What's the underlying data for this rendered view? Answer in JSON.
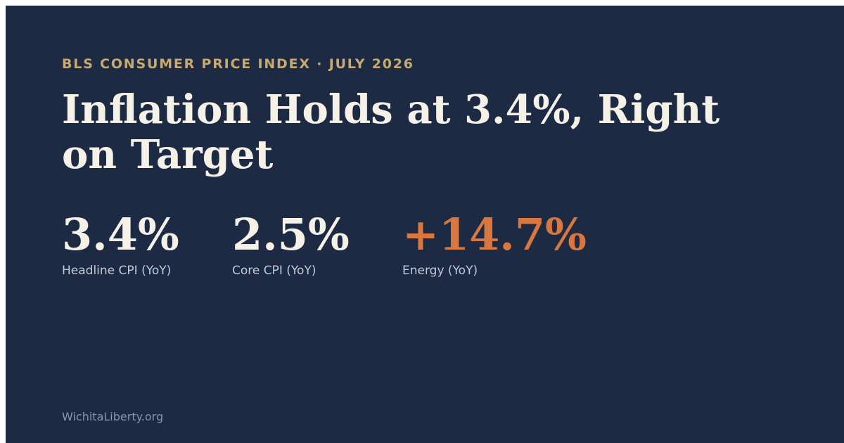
{
  "colors": {
    "background": "#1c2a44",
    "kicker": "#c9a96e",
    "headline": "#f6f1e7",
    "label": "#c3c9d6",
    "accent": "#d9773f",
    "footer": "#8b93a5"
  },
  "kicker": "BLS CONSUMER PRICE INDEX · JULY 2026",
  "headline": "Inflation Holds at 3.4%, Right on Target",
  "stats": [
    {
      "value": "3.4%",
      "label": "Headline CPI (YoY)"
    },
    {
      "value": "2.5%",
      "label": "Core CPI (YoY)"
    },
    {
      "value": "+14.7%",
      "label": "Energy (YoY)",
      "highlight": true
    }
  ],
  "footer": "WichitaLiberty.org"
}
